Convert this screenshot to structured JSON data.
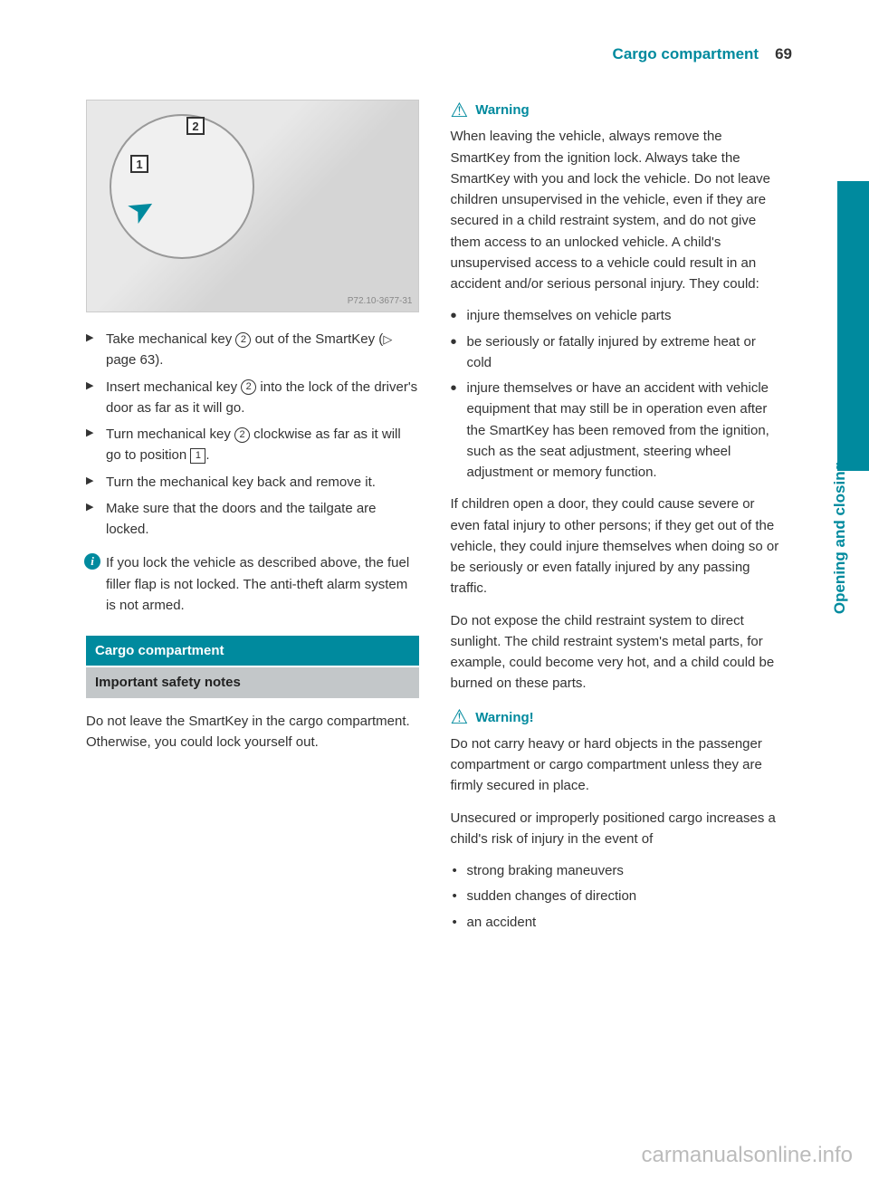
{
  "header": {
    "title": "Cargo compartment",
    "page_number": "69"
  },
  "side_label": "Opening and closing",
  "figure": {
    "id": "P72.10-3677-31",
    "callout1": "1",
    "callout2": "2"
  },
  "left": {
    "steps": [
      "Take mechanical key ② out of the SmartKey (▷ page 63).",
      "Insert mechanical key ② into the lock of the driver's door as far as it will go.",
      "Turn mechanical key ② clockwise as far as it will go to position ▢1.",
      "Turn the mechanical key back and remove it.",
      "Make sure that the doors and the tailgate are locked."
    ],
    "info": "If you lock the vehicle as described above, the fuel filler flap is not locked. The anti-theft alarm system is not armed.",
    "h_teal": "Cargo compartment",
    "h_gray": "Important safety notes",
    "para": "Do not leave the SmartKey in the cargo compartment. Otherwise, you could lock yourself out."
  },
  "right": {
    "warn1": {
      "label": "Warning",
      "p1": "When leaving the vehicle, always remove the SmartKey from the ignition lock. Always take the SmartKey with you and lock the vehicle. Do not leave children unsupervised in the vehicle, even if they are secured in a child restraint system, and do not give them access to an unlocked vehicle. A child's unsupervised access to a vehicle could result in an accident and/or serious personal injury. They could:",
      "bullets": [
        "injure themselves on vehicle parts",
        "be seriously or fatally injured by extreme heat or cold",
        "injure themselves or have an accident with vehicle equipment that may still be in operation even after the SmartKey has been removed from the ignition, such as the seat adjustment, steering wheel adjustment or memory function."
      ],
      "p2": "If children open a door, they could cause severe or even fatal injury to other persons; if they get out of the vehicle, they could injure themselves when doing so or be seriously or even fatally injured by any passing traffic.",
      "p3": "Do not expose the child restraint system to direct sunlight. The child restraint system's metal parts, for example, could become very hot, and a child could be burned on these parts."
    },
    "warn2": {
      "label": "Warning!",
      "p1": "Do not carry heavy or hard objects in the passenger compartment or cargo compartment unless they are firmly secured in place.",
      "p2": "Unsecured or improperly positioned cargo increases a child's risk of injury in the event of",
      "bullets": [
        "strong braking maneuvers",
        "sudden changes of direction",
        "an accident"
      ]
    }
  },
  "watermark": "carmanualsonline.info",
  "colors": {
    "teal": "#008a9e",
    "gray_heading": "#c3c7c9"
  }
}
